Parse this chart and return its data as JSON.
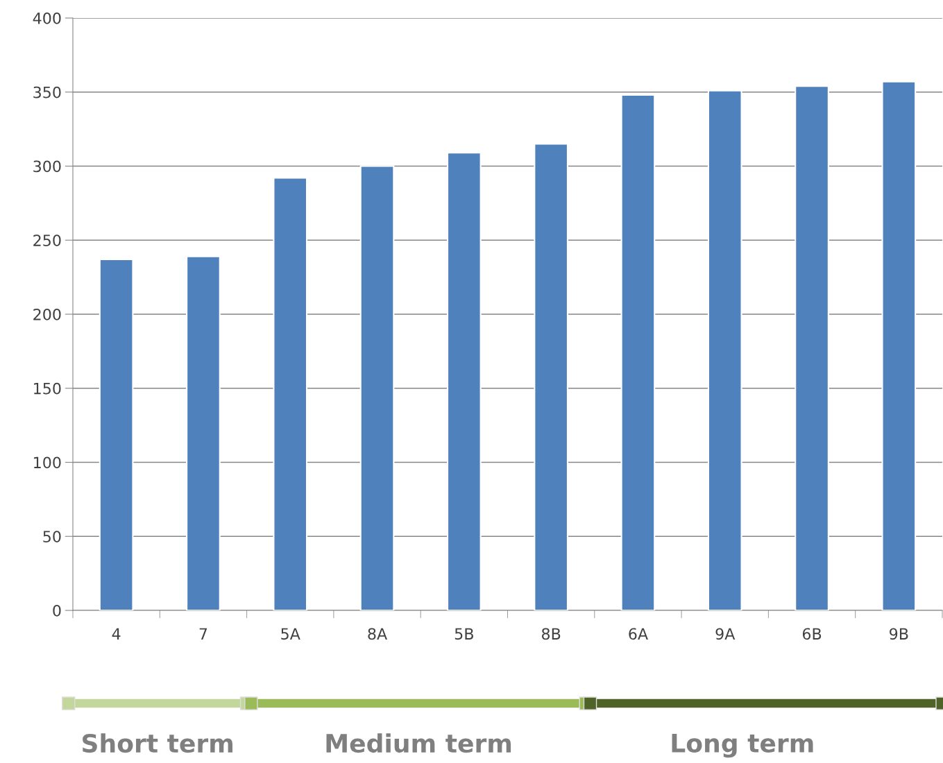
{
  "chart_data": {
    "type": "bar",
    "categories": [
      "4",
      "7",
      "5A",
      "8A",
      "5B",
      "8B",
      "6A",
      "9A",
      "6B",
      "9B"
    ],
    "values": [
      237,
      239,
      292,
      300,
      309,
      315,
      348,
      351,
      354,
      357
    ],
    "color": "#4f81bd",
    "ylim": [
      0,
      400
    ],
    "yticks": [
      0,
      50,
      100,
      150,
      200,
      250,
      300,
      350,
      400
    ],
    "grid": "y",
    "annotations": [
      "Short term",
      "Medium term",
      "Long term"
    ]
  }
}
